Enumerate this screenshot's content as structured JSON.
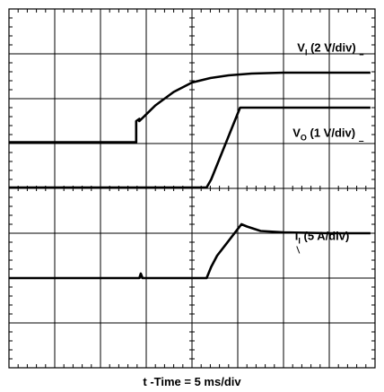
{
  "chart_data": {
    "type": "line",
    "title": "",
    "xlabel": "t -Time = 5 ms/div",
    "ylabel": "",
    "x_unit": "div",
    "y_unit": "div",
    "xlim": [
      0,
      8
    ],
    "ylim": [
      0,
      8
    ],
    "grid": true,
    "grid_divisions": {
      "x": 8,
      "y": 8
    },
    "series": [
      {
        "name": "V_I (2 V/div)",
        "label_main": "V",
        "label_sub": "I",
        "label_rest": " (2 V/div)",
        "label_anchor": [
          6.3,
          7.05
        ],
        "line_end": [
          7.75,
          6.98
        ],
        "x": [
          0,
          2.78,
          2.78,
          2.85,
          2.85,
          3.2,
          3.6,
          4.0,
          4.4,
          4.8,
          5.3,
          6.0,
          7.0,
          7.9
        ],
        "y": [
          5.03,
          5.03,
          5.5,
          5.55,
          5.5,
          5.85,
          6.15,
          6.36,
          6.46,
          6.52,
          6.56,
          6.58,
          6.58,
          6.58
        ]
      },
      {
        "name": "V_O (1 V/div)",
        "label_main": "V",
        "label_sub": "O",
        "label_rest": " (1 V/div)",
        "label_anchor": [
          6.2,
          5.15
        ],
        "line_end": [
          7.75,
          5.05
        ],
        "x": [
          0,
          4.32,
          4.42,
          5.05,
          5.3,
          6.0,
          7.0,
          7.9
        ],
        "y": [
          4.02,
          4.02,
          4.2,
          5.8,
          5.8,
          5.8,
          5.8,
          5.8
        ]
      },
      {
        "name": "I_I (5 A/div)",
        "label_main": "I",
        "label_sub": "I",
        "label_rest": " (5 A/div)",
        "label_anchor": [
          6.25,
          2.85
        ],
        "line_end": [
          6.35,
          2.55
        ],
        "x": [
          0,
          2.85,
          2.88,
          2.92,
          4.32,
          4.42,
          4.55,
          5.08,
          5.2,
          5.5,
          6.0,
          7.0,
          7.9
        ],
        "y": [
          2.0,
          2.0,
          2.1,
          2.0,
          2.0,
          2.25,
          2.5,
          3.2,
          3.15,
          3.05,
          3.02,
          3.0,
          3.0
        ]
      }
    ],
    "colors": {
      "trace": "#000000",
      "grid": "#000000",
      "background": "#ffffff"
    }
  }
}
